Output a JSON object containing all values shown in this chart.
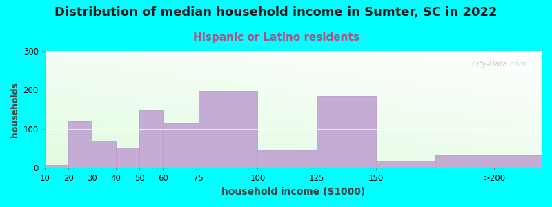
{
  "title": "Distribution of median household income in Sumter, SC in 2022",
  "subtitle": "Hispanic or Latino residents",
  "xlabel": "household income ($1000)",
  "ylabel": "households",
  "background_color": "#00FFFF",
  "bar_color": "#c4acd4",
  "bar_edge_color": "#b89ec8",
  "bin_edges": [
    10,
    20,
    30,
    40,
    50,
    60,
    75,
    100,
    125,
    150,
    175,
    220
  ],
  "values": [
    8,
    120,
    70,
    52,
    148,
    115,
    197,
    45,
    185,
    18,
    33
  ],
  "tick_positions": [
    10,
    20,
    30,
    40,
    50,
    60,
    75,
    100,
    125,
    150,
    200
  ],
  "tick_labels": [
    "10",
    "20",
    "30",
    "40",
    "50",
    "60",
    "75",
    "100",
    "125",
    "150",
    ">200"
  ],
  "ylim": [
    0,
    300
  ],
  "yticks": [
    0,
    100,
    200,
    300
  ],
  "watermark": "City-Data.com",
  "title_fontsize": 13,
  "subtitle_fontsize": 11,
  "subtitle_color": "#b05080",
  "xlabel_fontsize": 10,
  "ylabel_fontsize": 9,
  "tick_fontsize": 8.5
}
